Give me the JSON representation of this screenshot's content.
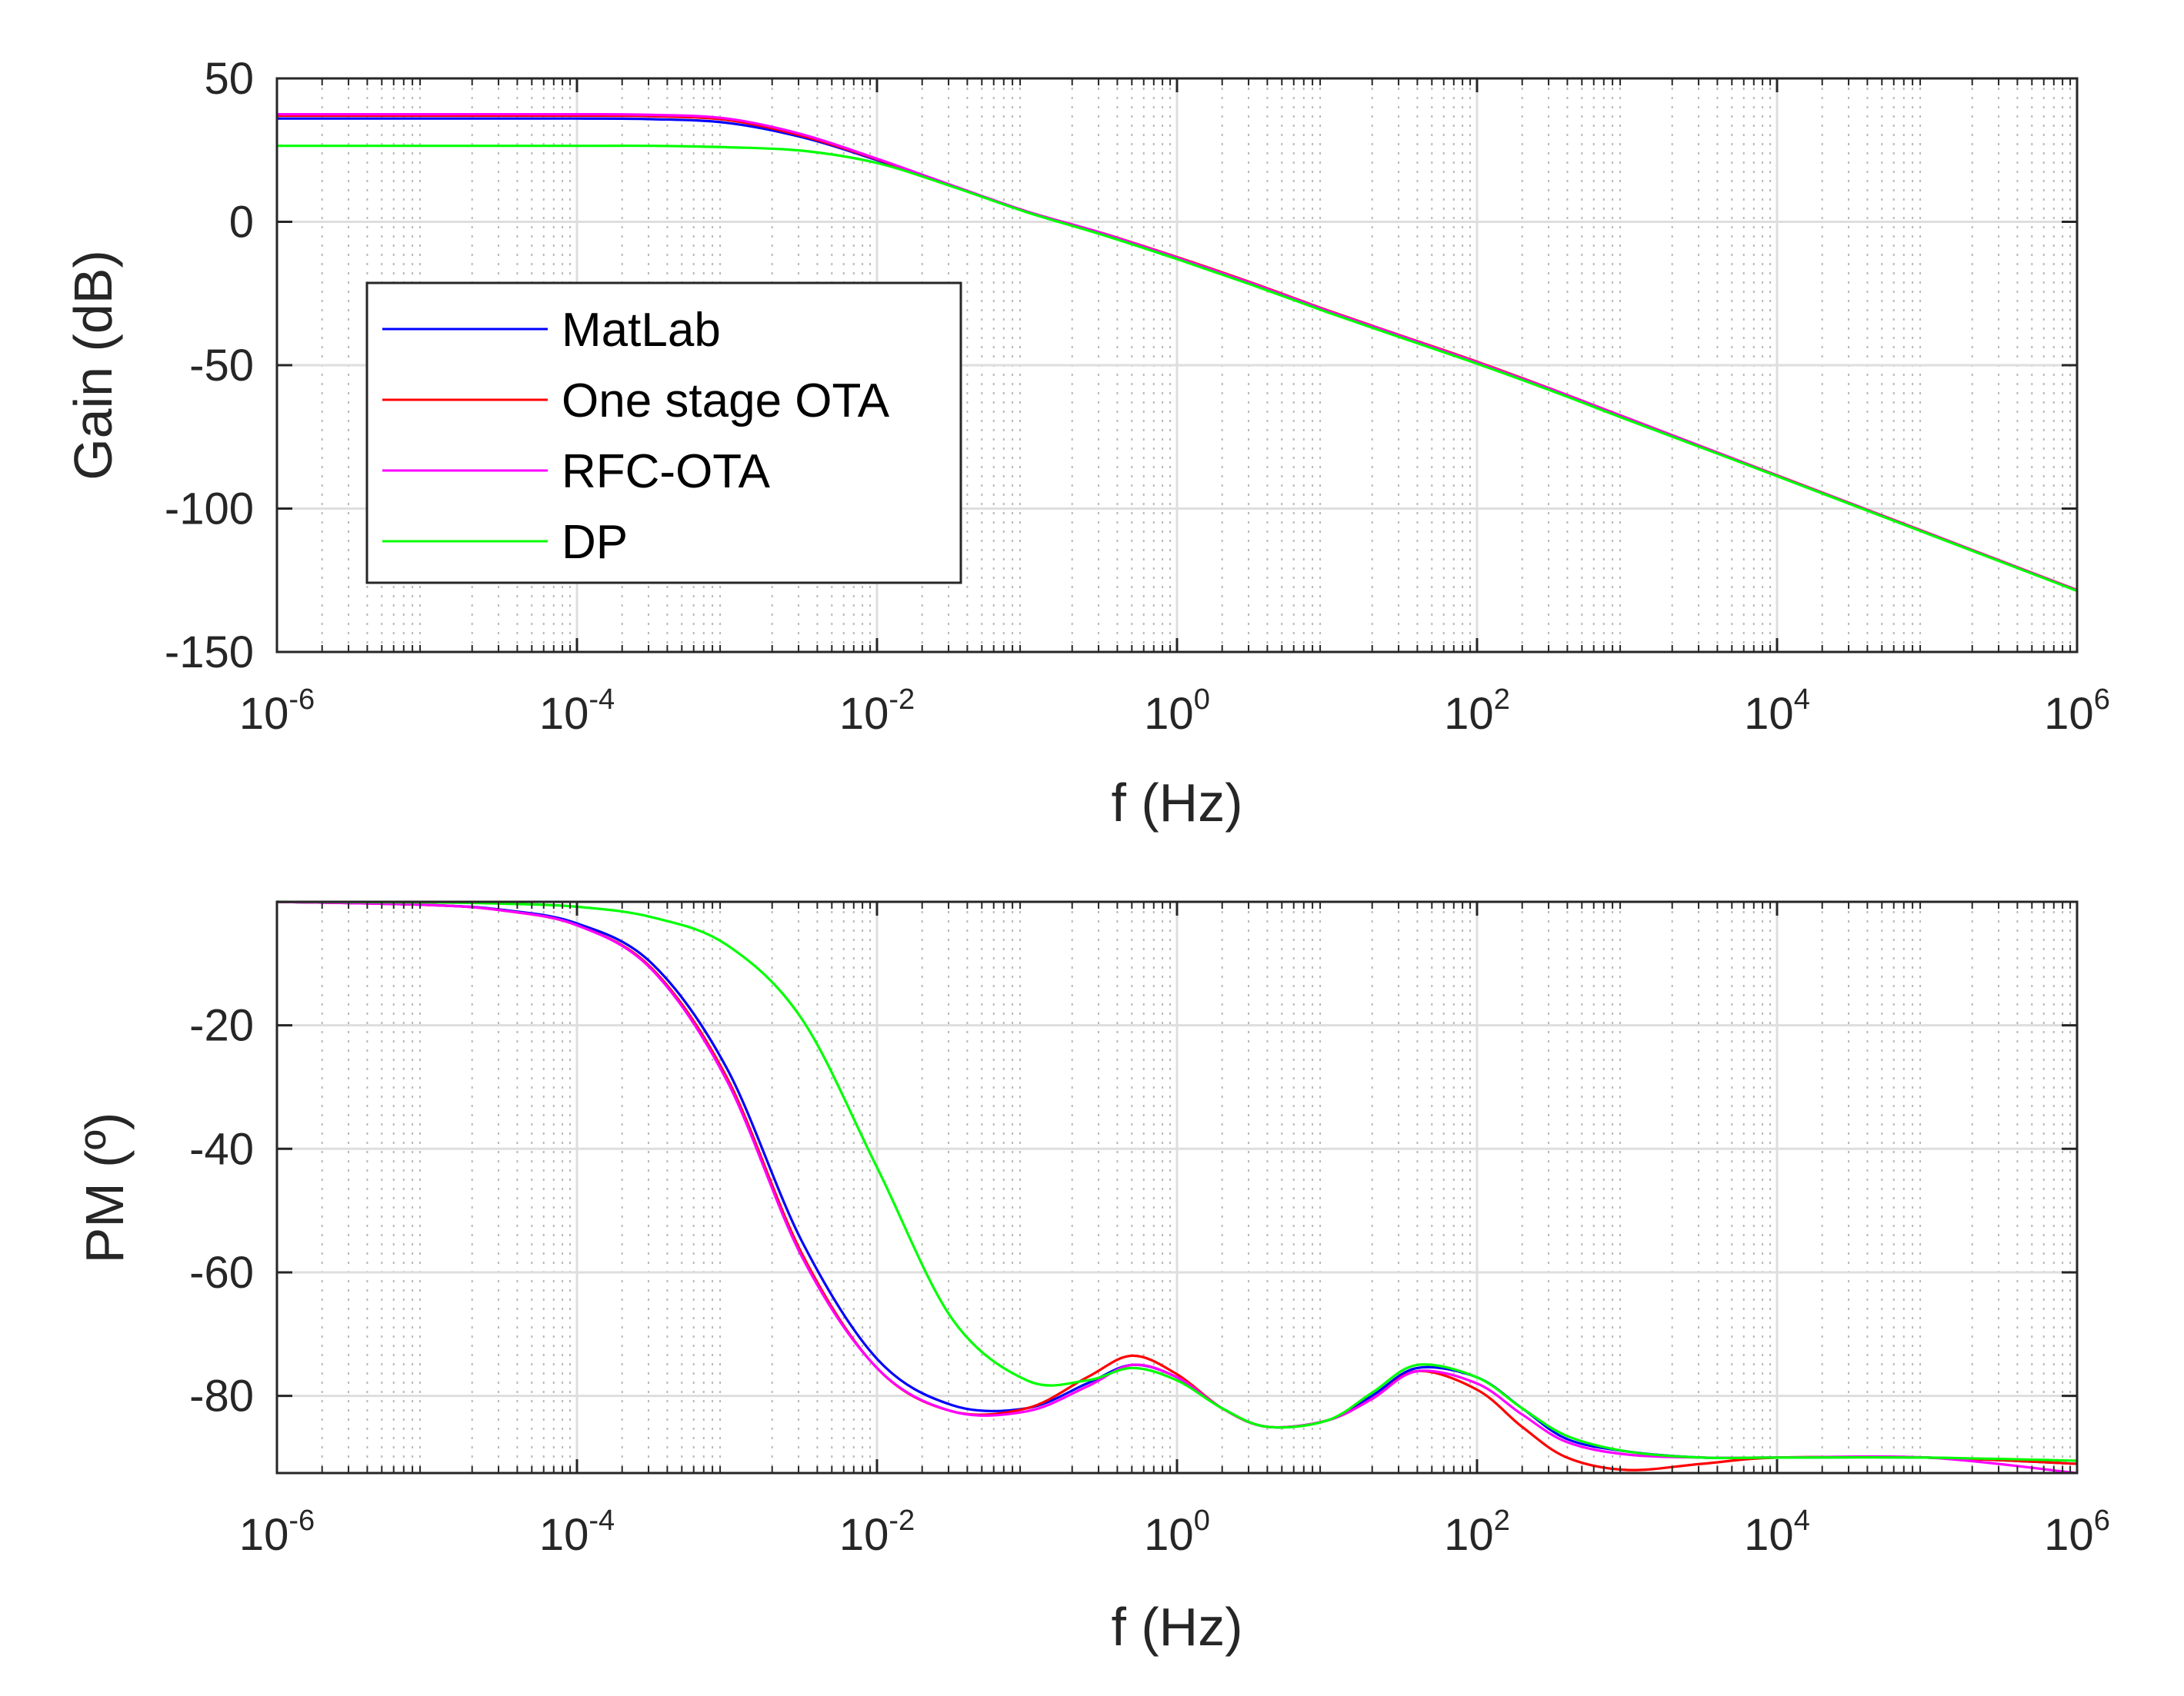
{
  "chart_data": [
    {
      "type": "line",
      "title": "",
      "xlabel": "f (Hz)",
      "ylabel": "Gain (dB)",
      "xscale": "log",
      "xlim": [
        1e-06,
        1000000.0
      ],
      "ylim": [
        -150,
        50
      ],
      "grid": true,
      "minor_grid": true,
      "xticks": [
        {
          "base": "10",
          "exp": "-6"
        },
        {
          "base": "10",
          "exp": "-4"
        },
        {
          "base": "10",
          "exp": "-2"
        },
        {
          "base": "10",
          "exp": "0"
        },
        {
          "base": "10",
          "exp": "2"
        },
        {
          "base": "10",
          "exp": "4"
        },
        {
          "base": "10",
          "exp": "6"
        }
      ],
      "yticks": [
        "50",
        "0",
        "-50",
        "-100",
        "-150"
      ],
      "legend_position": "center-left",
      "series": [
        {
          "name": "MatLab",
          "color": "#0000ff",
          "x_log10": [
            -6,
            -5,
            -4,
            -3.5,
            -3,
            -2.5,
            -2,
            -1.5,
            -1,
            -0.5,
            0,
            0.5,
            1,
            1.5,
            2,
            2.5,
            3,
            4,
            5,
            6
          ],
          "y": [
            36,
            36,
            36,
            35.8,
            34.5,
            29.5,
            21.5,
            12.5,
            3.5,
            -4,
            -12.5,
            -21.5,
            -31,
            -40,
            -49,
            -58.5,
            -68.5,
            -88.5,
            -108.5,
            -128.5
          ]
        },
        {
          "name": "One stage OTA",
          "color": "#ff0000",
          "x_log10": [
            -6,
            -5,
            -4,
            -3.5,
            -3,
            -2.5,
            -2,
            -1.5,
            -1,
            -0.5,
            0,
            0.5,
            1,
            1.5,
            2,
            2.5,
            3,
            4,
            5,
            6
          ],
          "y": [
            37,
            37,
            37,
            36.8,
            35.5,
            30.0,
            21.8,
            12.6,
            3.6,
            -3.9,
            -12.3,
            -21.3,
            -30.8,
            -39.8,
            -48.8,
            -58.4,
            -68.4,
            -88.4,
            -108.4,
            -128.4
          ]
        },
        {
          "name": "RFC-OTA",
          "color": "#ff00ff",
          "x_log10": [
            -6,
            -5,
            -4,
            -3.5,
            -3,
            -2.5,
            -2,
            -1.5,
            -1,
            -0.5,
            0,
            0.5,
            1,
            1.5,
            2,
            2.5,
            3,
            4,
            5,
            6
          ],
          "y": [
            37.5,
            37.5,
            37.5,
            37.3,
            36,
            30.5,
            22,
            12.7,
            3.6,
            -4,
            -12.5,
            -21.5,
            -31,
            -40,
            -49,
            -58.5,
            -68.5,
            -88.5,
            -108.5,
            -128.5
          ]
        },
        {
          "name": "DP",
          "color": "#00ff00",
          "x_log10": [
            -6,
            -5,
            -4,
            -3.5,
            -3,
            -2.5,
            -2,
            -1.5,
            -1,
            -0.5,
            0,
            0.5,
            1,
            1.5,
            2,
            2.5,
            3,
            4,
            5,
            6
          ],
          "y": [
            26.5,
            26.5,
            26.5,
            26.5,
            26,
            24.8,
            20.5,
            12.3,
            3.3,
            -4.5,
            -13,
            -22,
            -31.5,
            -40.5,
            -49.5,
            -59,
            -69,
            -88.7,
            -108.7,
            -128.7
          ]
        }
      ]
    },
    {
      "type": "line",
      "title": "",
      "xlabel": "f (Hz)",
      "ylabel": "PM (º)",
      "xscale": "log",
      "xlim": [
        1e-06,
        1000000.0
      ],
      "ylim": [
        -92.5,
        0
      ],
      "grid": true,
      "minor_grid": true,
      "xticks": [
        {
          "base": "10",
          "exp": "-6"
        },
        {
          "base": "10",
          "exp": "-4"
        },
        {
          "base": "10",
          "exp": "-2"
        },
        {
          "base": "10",
          "exp": "0"
        },
        {
          "base": "10",
          "exp": "2"
        },
        {
          "base": "10",
          "exp": "4"
        },
        {
          "base": "10",
          "exp": "6"
        }
      ],
      "yticks": [
        "-20",
        "-40",
        "-60",
        "-80"
      ],
      "ytick_values": [
        -20,
        -40,
        -60,
        -80
      ],
      "series": [
        {
          "name": "MatLab",
          "color": "#0000ff",
          "x_log10": [
            -6,
            -5,
            -4.5,
            -4,
            -3.5,
            -3,
            -2.5,
            -2,
            -1.5,
            -1,
            -0.6,
            -0.3,
            0,
            0.3,
            0.6,
            1,
            1.3,
            1.6,
            2,
            2.3,
            2.6,
            3,
            3.5,
            4,
            5,
            6
          ],
          "y": [
            0,
            -0.5,
            -1.3,
            -3.5,
            -10,
            -27,
            -55,
            -74,
            -81.5,
            -82,
            -78,
            -75,
            -77,
            -82,
            -85,
            -84,
            -80,
            -75.5,
            -77,
            -82,
            -87,
            -89,
            -90,
            -90,
            -90,
            -91
          ]
        },
        {
          "name": "One stage OTA",
          "color": "#ff0000",
          "x_log10": [
            -6,
            -5,
            -4.5,
            -4,
            -3.5,
            -3,
            -2.5,
            -2,
            -1.5,
            -1,
            -0.6,
            -0.3,
            0,
            0.3,
            0.6,
            1,
            1.3,
            1.6,
            2,
            2.3,
            2.6,
            3,
            3.5,
            4,
            5,
            6
          ],
          "y": [
            0,
            -0.5,
            -1.4,
            -3.8,
            -10.8,
            -28.5,
            -57,
            -75.5,
            -82.5,
            -82,
            -77,
            -73.5,
            -76.5,
            -82,
            -85,
            -84,
            -80.5,
            -76,
            -79,
            -85,
            -90,
            -92,
            -91,
            -90,
            -90,
            -91
          ]
        },
        {
          "name": "RFC-OTA",
          "color": "#ff00ff",
          "x_log10": [
            -6,
            -5,
            -4.5,
            -4,
            -3.5,
            -3,
            -2.5,
            -2,
            -1.5,
            -1,
            -0.6,
            -0.3,
            0,
            0.3,
            0.6,
            1,
            1.3,
            1.6,
            2,
            2.3,
            2.6,
            3,
            3.5,
            4,
            5,
            6
          ],
          "y": [
            0,
            -0.5,
            -1.4,
            -3.8,
            -11,
            -29,
            -57.5,
            -75.5,
            -82.5,
            -82.5,
            -78.5,
            -75,
            -77,
            -82,
            -85,
            -84,
            -80.5,
            -76,
            -78,
            -83,
            -87.5,
            -89.5,
            -90,
            -90,
            -90,
            -92.5
          ]
        },
        {
          "name": "DP",
          "color": "#00ff00",
          "x_log10": [
            -6,
            -5,
            -4.5,
            -4,
            -3.5,
            -3,
            -2.5,
            -2,
            -1.5,
            -1,
            -0.6,
            -0.3,
            0,
            0.3,
            0.6,
            1,
            1.3,
            1.6,
            2,
            2.3,
            2.6,
            3,
            3.5,
            4,
            5,
            6
          ],
          "y": [
            0,
            -0.1,
            -0.3,
            -0.8,
            -2.5,
            -7,
            -19,
            -43,
            -67.5,
            -77.5,
            -77.5,
            -75.5,
            -77.5,
            -82,
            -85,
            -84,
            -79.5,
            -75,
            -77,
            -82,
            -86.5,
            -89,
            -90,
            -90,
            -90,
            -90.5
          ]
        }
      ]
    }
  ]
}
